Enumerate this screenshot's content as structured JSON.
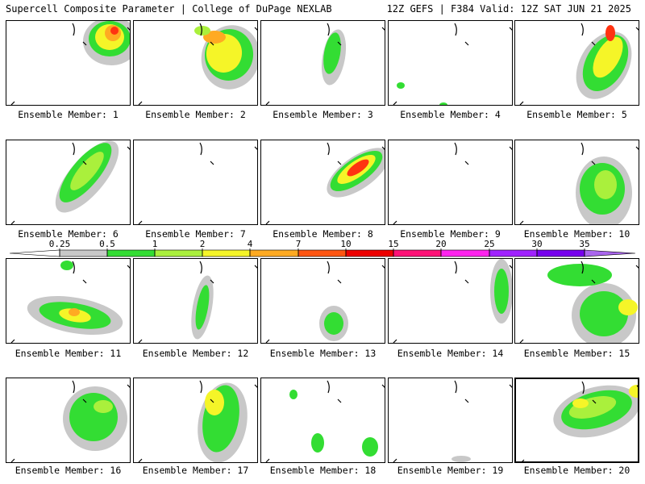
{
  "header": {
    "title": "Supercell Composite Parameter | College of DuPage NEXLAB",
    "run_info": "12Z GEFS | F384 Valid: 12Z SAT JUN 21 2025"
  },
  "member_label_prefix": "Ensemble Member: ",
  "members": [
    "1",
    "2",
    "3",
    "4",
    "5",
    "6",
    "7",
    "8",
    "9",
    "10",
    "11",
    "12",
    "13",
    "14",
    "15",
    "16",
    "17",
    "18",
    "19",
    "20"
  ],
  "highlighted_member": "20",
  "colorbar": {
    "levels": [
      "0.25",
      "0.5",
      "1",
      "2",
      "4",
      "7",
      "10",
      "15",
      "20",
      "25",
      "30",
      "35"
    ],
    "colors": [
      "#ffffff",
      "#c8c8c8",
      "#33dd33",
      "#aaf03c",
      "#f5f528",
      "#ffaa22",
      "#ff5511",
      "#ee0000",
      "#ff1177",
      "#ff22ee",
      "#a022ff",
      "#7700ee",
      "#aa66ee",
      "#33dde8"
    ]
  },
  "field_colors": {
    "gray": "#c8c8c8",
    "green": "#33dd33",
    "lime": "#aaf03c",
    "yellow": "#f5f528",
    "orange": "#ffaa22",
    "red": "#ff3311"
  }
}
